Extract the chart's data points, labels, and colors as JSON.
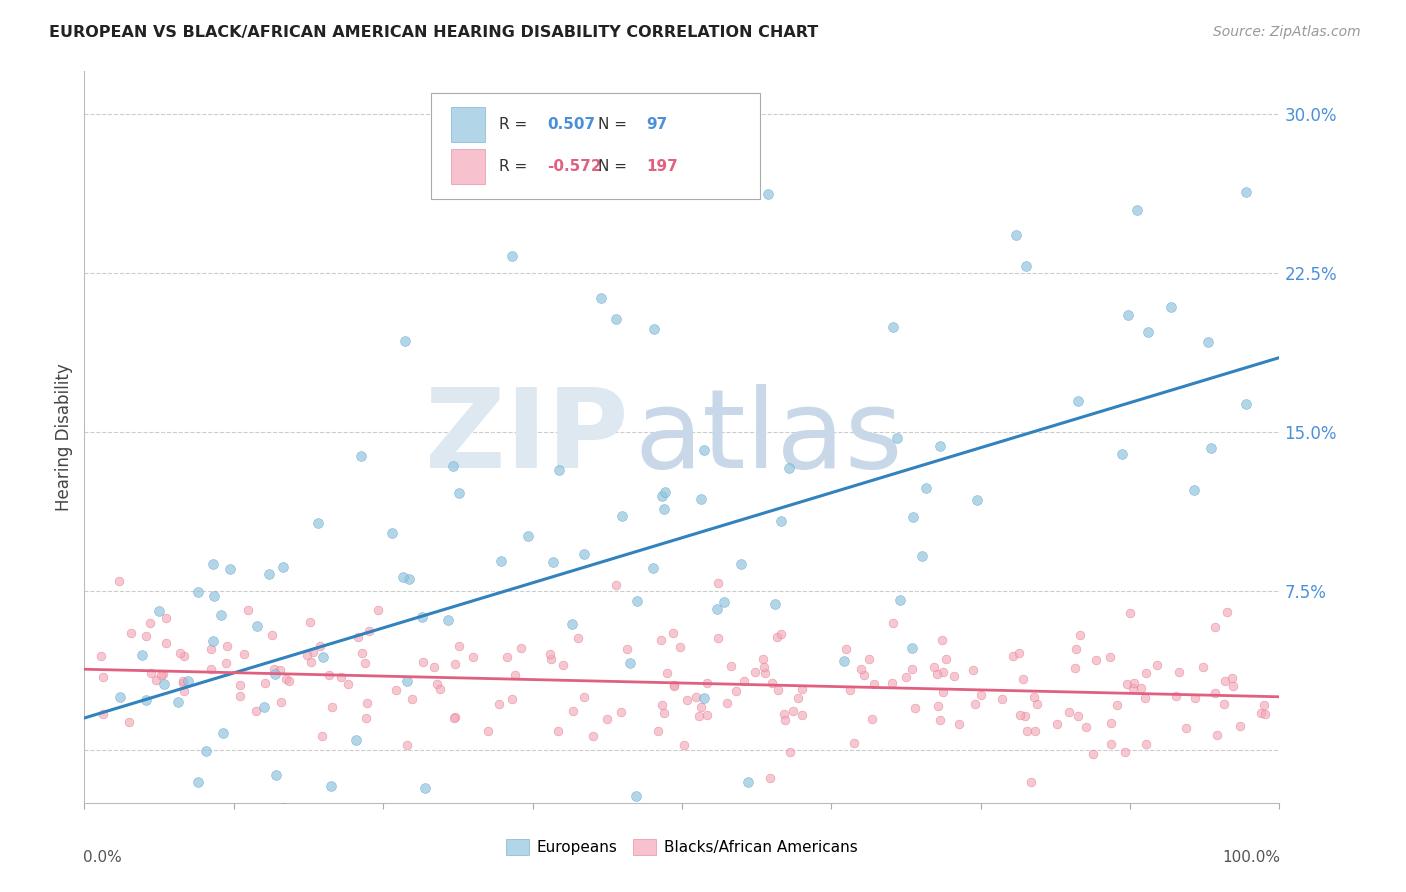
{
  "title": "EUROPEAN VS BLACK/AFRICAN AMERICAN HEARING DISABILITY CORRELATION CHART",
  "source": "Source: ZipAtlas.com",
  "ylabel": "Hearing Disability",
  "blue_color": "#92c5de",
  "blue_edge_color": "#5b9dc9",
  "pink_color": "#f4a9b8",
  "pink_edge_color": "#e07090",
  "blue_line_color": "#3182bd",
  "pink_line_color": "#e06080",
  "right_tick_color": "#4a90d9",
  "watermark_zip_color": "#dde8f0",
  "watermark_atlas_color": "#c8d8e8",
  "background_color": "#ffffff",
  "grid_color": "#cccccc",
  "blue_line": {
    "x0": 0.0,
    "y0": 0.015,
    "x1": 1.0,
    "y1": 0.185
  },
  "pink_line": {
    "x0": 0.0,
    "y0": 0.038,
    "x1": 1.0,
    "y1": 0.025
  },
  "ylim": [
    -0.025,
    0.32
  ],
  "xlim": [
    0.0,
    1.0
  ],
  "yticks": [
    0.0,
    0.075,
    0.15,
    0.225,
    0.3
  ],
  "ytick_labels": [
    "",
    "7.5%",
    "15.0%",
    "22.5%",
    "30.0%"
  ],
  "blue_N": 97,
  "pink_N": 197,
  "legend_R_blue": "0.507",
  "legend_N_blue": "97",
  "legend_R_pink": "-0.572",
  "legend_N_pink": "197"
}
